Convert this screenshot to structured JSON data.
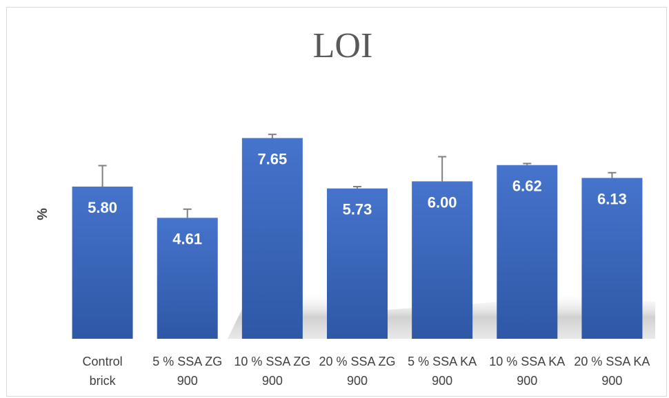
{
  "chart_data": {
    "type": "bar",
    "title": "LOI",
    "ylabel": "%",
    "xlabel": "",
    "ylim": [
      0,
      9.5
    ],
    "grid": false,
    "legend": "none",
    "categories": [
      [
        "Control",
        "brick"
      ],
      [
        "5 % SSA ZG",
        "900"
      ],
      [
        "10 % SSA ZG",
        "900"
      ],
      [
        "20 % SSA ZG",
        "900"
      ],
      [
        "5 % SSA KA",
        "900"
      ],
      [
        "10 % SSA KA",
        "900"
      ],
      [
        "20 % SSA KA",
        "900"
      ]
    ],
    "values": [
      5.8,
      4.61,
      7.65,
      5.73,
      6.0,
      6.62,
      6.13
    ],
    "value_labels": [
      "5.80",
      "4.61",
      "7.65",
      "5.73",
      "6.00",
      "6.62",
      "6.13"
    ],
    "error": [
      0.8,
      0.33,
      0.14,
      0.07,
      0.94,
      0.06,
      0.2
    ],
    "colors": {
      "bar_top": "#4674cc",
      "bar_bottom": "#2e58a6",
      "error_bar": "#7f7f7f",
      "value_label": "#ffffff"
    }
  }
}
